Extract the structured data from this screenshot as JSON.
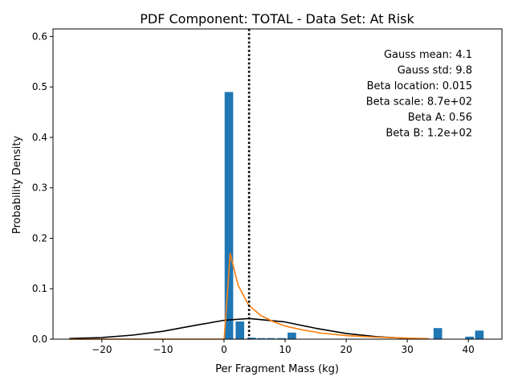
{
  "chart_data": {
    "type": "bar",
    "title": "PDF Component: TOTAL - Data Set: At Risk",
    "xlabel": "Per Fragment Mass (kg)",
    "ylabel": "Probability Density",
    "xlim": [
      -28.0,
      45.5
    ],
    "ylim": [
      0,
      0.615
    ],
    "x_ticks": [
      -20,
      -10,
      0,
      10,
      20,
      30,
      40
    ],
    "x_tick_labels": [
      "−20",
      "−10",
      "0",
      "10",
      "20",
      "30",
      "40"
    ],
    "y_ticks": [
      0.0,
      0.1,
      0.2,
      0.3,
      0.4,
      0.5,
      0.6
    ],
    "y_tick_labels": [
      "0.0",
      "0.1",
      "0.2",
      "0.3",
      "0.4",
      "0.5",
      "0.6"
    ],
    "grid": false,
    "colors": {
      "bars": "#1f77b4",
      "beta_curve": "#ff7f0e",
      "gauss_curve": "#000000",
      "mean_line": "#000000"
    },
    "histogram": {
      "bin_width": 1.4,
      "bins": [
        {
          "x0": 0.1,
          "value": 0.49
        },
        {
          "x0": 1.9,
          "value": 0.035
        },
        {
          "x0": 3.8,
          "value": 0.003
        },
        {
          "x0": 5.4,
          "value": 0.002
        },
        {
          "x0": 7.0,
          "value": 0.002
        },
        {
          "x0": 8.7,
          "value": 0.002
        },
        {
          "x0": 10.4,
          "value": 0.013
        },
        {
          "x0": 34.3,
          "value": 0.022
        },
        {
          "x0": 39.5,
          "value": 0.005
        },
        {
          "x0": 41.1,
          "value": 0.017
        }
      ]
    },
    "series": [
      {
        "type": "line",
        "color": "#000000",
        "x": [
          -25.3,
          -20,
          -15,
          -10,
          -5,
          0,
          4.1,
          10,
          15,
          20,
          25,
          30,
          33.5
        ],
        "values": [
          0.0012,
          0.0032,
          0.0079,
          0.0156,
          0.0267,
          0.0375,
          0.041,
          0.0341,
          0.0217,
          0.0113,
          0.0049,
          0.0016,
          0.0007
        ]
      },
      {
        "type": "line",
        "color": "#ff7f0e",
        "x": [
          -25.3,
          0.02,
          1.0,
          2.3,
          4.0,
          6.0,
          8.0,
          10.0,
          13.0,
          16.0,
          20.0,
          25.0,
          30.0,
          33.5
        ],
        "values": [
          0.0,
          0.0,
          0.17,
          0.107,
          0.068,
          0.047,
          0.035,
          0.026,
          0.018,
          0.012,
          0.007,
          0.004,
          0.002,
          0.001
        ]
      }
    ],
    "vline": {
      "x": 4.1,
      "style": "dotted"
    },
    "annotations": [
      "Gauss mean: 4.1",
      "Gauss std: 9.8",
      "Beta location: 0.015",
      "Beta scale: 8.7e+02",
      "Beta A: 0.56",
      "Beta B: 1.2e+02"
    ]
  }
}
